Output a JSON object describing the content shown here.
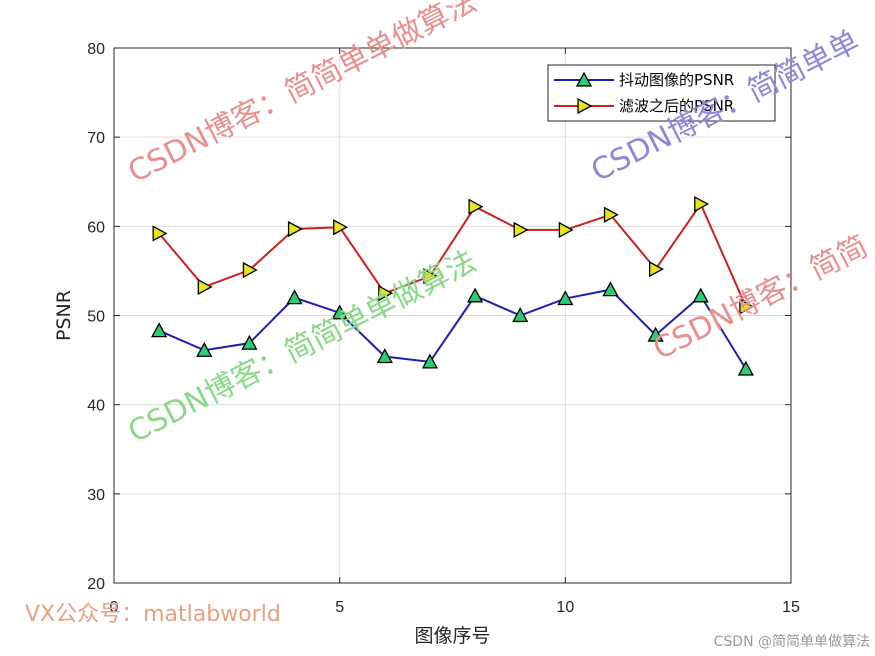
{
  "chart_data": {
    "type": "line",
    "xlabel": "图像序号",
    "ylabel": "PSNR",
    "xlim": [
      0,
      15
    ],
    "ylim": [
      20,
      80
    ],
    "xticks": [
      0,
      5,
      10,
      15
    ],
    "yticks": [
      20,
      30,
      40,
      50,
      60,
      70,
      80
    ],
    "grid": true,
    "legend": "top-right",
    "x": [
      1,
      2,
      3,
      4,
      5,
      6,
      7,
      8,
      9,
      10,
      11,
      12,
      13,
      14
    ],
    "series": [
      {
        "name": "抖动图像的PSNR",
        "color": "#1f1fb0",
        "marker": "triangle-up",
        "marker_color": "#2ecc71",
        "values": [
          48.3,
          46.1,
          46.9,
          52.0,
          50.3,
          45.4,
          44.8,
          52.2,
          50.0,
          51.9,
          52.9,
          47.8,
          52.2,
          44.0
        ]
      },
      {
        "name": "滤波之后的PSNR",
        "color": "#cc1f1f",
        "marker": "triangle-right",
        "marker_color": "#e6e61a",
        "values": [
          59.2,
          53.2,
          55.1,
          59.7,
          59.9,
          52.5,
          54.4,
          62.2,
          59.6,
          59.6,
          61.3,
          55.2,
          62.5,
          51.0
        ]
      }
    ]
  },
  "watermarks": [
    {
      "text": "CSDN博客：简简单单做算法",
      "color": "#e89090"
    },
    {
      "text": "CSDN博客：简简单单",
      "color": "#8a8ad8"
    },
    {
      "text": "CSDN博客：简简单单做算法",
      "color": "#8ad88a"
    },
    {
      "text": "CSDN博客：简简",
      "color": "#e89090"
    },
    {
      "text": "VX公众号：matlabworld",
      "color": "#e8a080"
    },
    {
      "text": "CSDN @简简单单做算法",
      "color": "#999999"
    }
  ]
}
